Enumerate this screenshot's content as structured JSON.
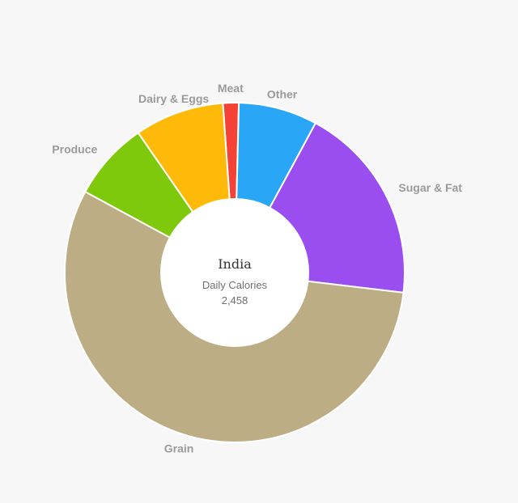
{
  "chart_data": {
    "type": "pie",
    "center": {
      "title": "India",
      "subtitle": "Daily Calories",
      "value": "2,458"
    },
    "slices": [
      {
        "label": "Meat",
        "value": 1.5,
        "color": "#f44336"
      },
      {
        "label": "Other",
        "value": 7.5,
        "color": "#29a7f6"
      },
      {
        "label": "Sugar & Fat",
        "value": 19,
        "color": "#9b4ef0"
      },
      {
        "label": "Grain",
        "value": 56,
        "color": "#bdad84"
      },
      {
        "label": "Produce",
        "value": 7.5,
        "color": "#7ec90c"
      },
      {
        "label": "Dairy & Eggs",
        "value": 8.5,
        "color": "#ffb909"
      }
    ]
  }
}
